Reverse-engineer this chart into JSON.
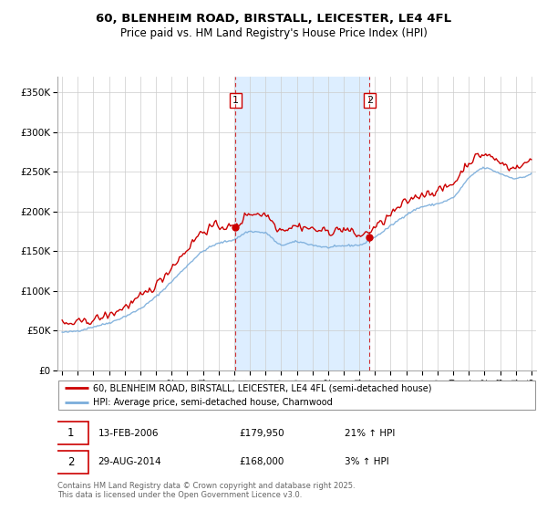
{
  "title1": "60, BLENHEIM ROAD, BIRSTALL, LEICESTER, LE4 4FL",
  "title2": "Price paid vs. HM Land Registry's House Price Index (HPI)",
  "legend_line1": "60, BLENHEIM ROAD, BIRSTALL, LEICESTER, LE4 4FL (semi-detached house)",
  "legend_line2": "HPI: Average price, semi-detached house, Charnwood",
  "annotation1_date": "13-FEB-2006",
  "annotation1_price": "£179,950",
  "annotation1_hpi": "21% ↑ HPI",
  "annotation2_date": "29-AUG-2014",
  "annotation2_price": "£168,000",
  "annotation2_hpi": "3% ↑ HPI",
  "footer": "Contains HM Land Registry data © Crown copyright and database right 2025.\nThis data is licensed under the Open Government Licence v3.0.",
  "vline1_x": 2006.08,
  "vline2_x": 2014.66,
  "marker1_x": 2006.08,
  "marker1_y": 179950,
  "marker2_x": 2014.66,
  "marker2_y": 168000,
  "red_color": "#cc0000",
  "blue_color": "#7aaddb",
  "shading_color": "#ddeeff",
  "ylim": [
    0,
    370000
  ],
  "xlim_start": 1994.7,
  "xlim_end": 2025.3
}
